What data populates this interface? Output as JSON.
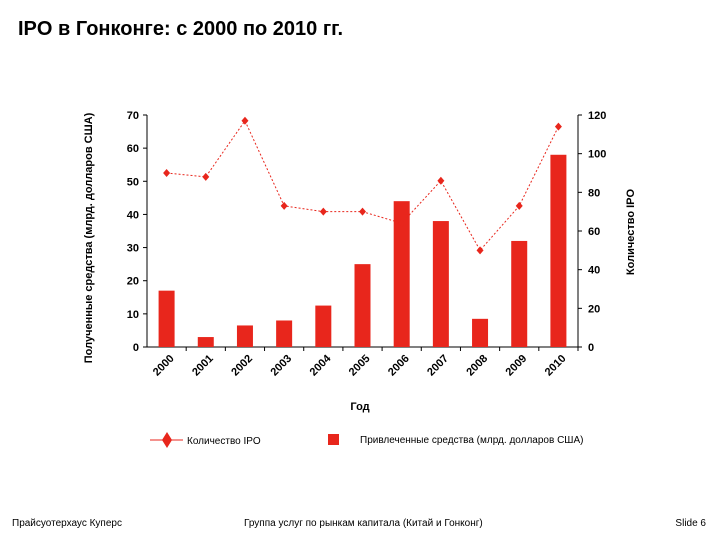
{
  "page": {
    "title": "IPO в Гонконге: с 2000 по 2010 гг.",
    "footer_left": "Прайсуотерхаус Куперс",
    "footer_center": "Группа услуг по рынкам капитала (Китай и Гонконг)",
    "footer_right": "Slide 6"
  },
  "chart_data": {
    "type": "bar",
    "categories": [
      "2000",
      "2001",
      "2002",
      "2003",
      "2004",
      "2005",
      "2006",
      "2007",
      "2008",
      "2009",
      "2010"
    ],
    "xlabel": "Год",
    "ylabel": "Полученные средства (млрд. долларов США)",
    "y2label": "Количество IPO",
    "ylim": [
      0,
      70
    ],
    "y2lim": [
      0,
      120
    ],
    "yticks": [
      0,
      10,
      20,
      30,
      40,
      50,
      60,
      70
    ],
    "y2ticks": [
      0,
      20,
      40,
      60,
      80,
      100,
      120
    ],
    "grid": false,
    "legend_position": "bottom",
    "series": [
      {
        "name": "Привлеченные средства (млрд. долларов США)",
        "type": "bar",
        "axis": "left",
        "color": "#e8261c",
        "values": [
          17,
          3,
          6.5,
          8,
          12.5,
          25,
          44,
          38,
          8.5,
          32,
          58
        ]
      },
      {
        "name": "Количество IPO",
        "type": "line",
        "axis": "right",
        "color": "#e8261c",
        "values": [
          90,
          88,
          117,
          73,
          70,
          70,
          64,
          86,
          50,
          73,
          114
        ]
      }
    ]
  }
}
